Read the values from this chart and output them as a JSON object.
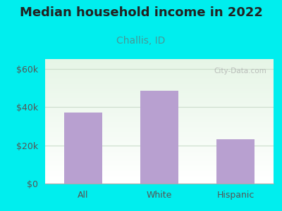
{
  "title": "Median household income in 2022",
  "subtitle": "Challis, ID",
  "categories": [
    "All",
    "White",
    "Hispanic"
  ],
  "values": [
    37000,
    48500,
    23000
  ],
  "bar_color": "#b8a0d0",
  "title_fontsize": 13,
  "subtitle_fontsize": 10,
  "tick_fontsize": 9,
  "bg_color": "#00eeee",
  "axis_color": "#555555",
  "subtitle_color": "#449999",
  "yticks": [
    0,
    20000,
    40000,
    60000
  ],
  "ytick_labels": [
    "$0",
    "$20k",
    "$40k",
    "$60k"
  ],
  "ylim": [
    0,
    65000
  ],
  "watermark": "City-Data.com",
  "grid_color": "#ccddcc",
  "plot_bg_top": "#d8edd8",
  "plot_bg_bottom": "#ffffff"
}
